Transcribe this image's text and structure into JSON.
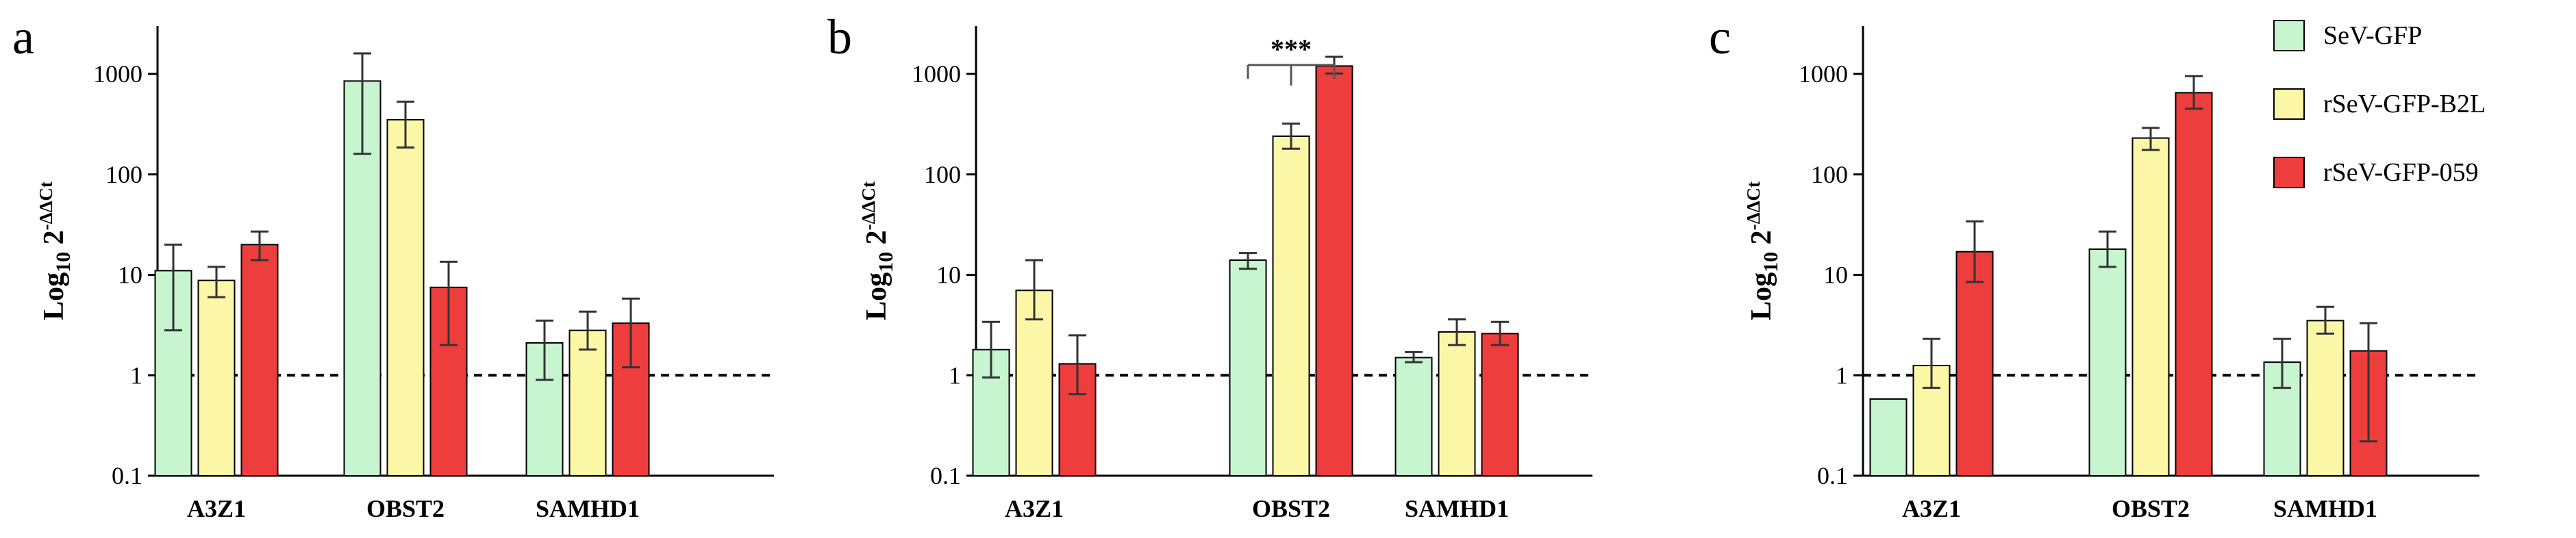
{
  "legend": {
    "items": [
      {
        "label": "SeV-GFP",
        "color": "#c6f5cf"
      },
      {
        "label": "rSeV-GFP-B2L",
        "color": "#fbf7a6"
      },
      {
        "label": "rSeV-GFP-059",
        "color": "#ee3d3d"
      }
    ]
  },
  "chart_data": [
    {
      "type": "bar",
      "panel": "a",
      "ylabel": {
        "main": "Log",
        "sub": "10",
        "base": " 2",
        "sup": "-ΔΔCt"
      },
      "yscale": "log",
      "ylim": [
        0.1,
        3000
      ],
      "yticks": [
        "0.1",
        "1",
        "10",
        "100",
        "1000"
      ],
      "reference_line": 1,
      "categories": [
        "A3Z1",
        "OBST2",
        "SAMHD1"
      ],
      "series": [
        {
          "name": "SeV-GFP",
          "values": [
            11,
            850,
            2.1
          ],
          "err_high": [
            20,
            1600,
            3.5
          ],
          "err_low": [
            2.8,
            160,
            0.9
          ]
        },
        {
          "name": "rSeV-GFP-B2L",
          "values": [
            8.8,
            350,
            2.8
          ],
          "err_high": [
            12,
            530,
            4.3
          ],
          "err_low": [
            6.0,
            185,
            1.8
          ]
        },
        {
          "name": "rSeV-GFP-059",
          "values": [
            20,
            7.5,
            3.3
          ],
          "err_high": [
            27,
            13.5,
            5.8
          ],
          "err_low": [
            14,
            2.0,
            1.2
          ]
        }
      ],
      "annotations": []
    },
    {
      "type": "bar",
      "panel": "b",
      "ylabel": {
        "main": "Log",
        "sub": "10",
        "base": " 2",
        "sup": "-ΔΔCt"
      },
      "yscale": "log",
      "ylim": [
        0.1,
        3000
      ],
      "yticks": [
        "0.1",
        "1",
        "10",
        "100",
        "1000"
      ],
      "reference_line": 1,
      "categories": [
        "A3Z1",
        "OBST2",
        "SAMHD1"
      ],
      "series": [
        {
          "name": "SeV-GFP",
          "values": [
            1.8,
            14,
            1.5
          ],
          "err_high": [
            3.4,
            16.5,
            1.7
          ],
          "err_low": [
            0.95,
            11.5,
            1.35
          ]
        },
        {
          "name": "rSeV-GFP-B2L",
          "values": [
            7,
            240,
            2.7
          ],
          "err_high": [
            14,
            320,
            3.6
          ],
          "err_low": [
            3.6,
            180,
            2.0
          ]
        },
        {
          "name": "rSeV-GFP-059",
          "values": [
            1.3,
            1200,
            2.6
          ],
          "err_high": [
            2.5,
            1480,
            3.4
          ],
          "err_low": [
            0.65,
            1010,
            2.0
          ]
        }
      ],
      "annotations": [
        {
          "text": "***",
          "between": "OBST2"
        }
      ]
    },
    {
      "type": "bar",
      "panel": "c",
      "ylabel": {
        "main": "Log",
        "sub": "10",
        "base": " 2",
        "sup": "-ΔΔCt"
      },
      "yscale": "log",
      "ylim": [
        0.1,
        3000
      ],
      "yticks": [
        "0.1",
        "1",
        "10",
        "100",
        "1000"
      ],
      "reference_line": 1,
      "categories": [
        "A3Z1",
        "OBST2",
        "SAMHD1"
      ],
      "series": [
        {
          "name": "SeV-GFP",
          "values": [
            0.58,
            18,
            1.35
          ],
          "err_high": [
            0.58,
            27,
            2.3
          ],
          "err_low": [
            0.58,
            12,
            0.75
          ]
        },
        {
          "name": "rSeV-GFP-B2L",
          "values": [
            1.25,
            230,
            3.5
          ],
          "err_high": [
            2.3,
            290,
            4.8
          ],
          "err_low": [
            0.75,
            175,
            2.6
          ]
        },
        {
          "name": "rSeV-GFP-059",
          "values": [
            17,
            650,
            1.75
          ],
          "err_high": [
            34,
            950,
            3.3
          ],
          "err_low": [
            8.5,
            450,
            0.22
          ]
        }
      ],
      "annotations": []
    }
  ]
}
